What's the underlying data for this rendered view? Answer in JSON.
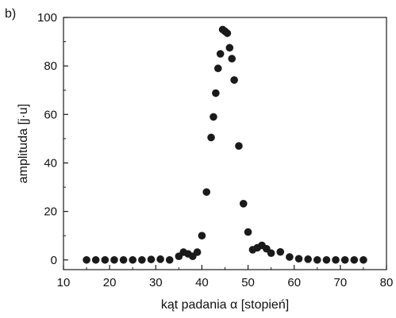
{
  "chart_data": {
    "type": "scatter",
    "panel_label": "b)",
    "title": "",
    "xlabel": "kąt padania α [stopień]",
    "ylabel": "amplituda [j·u]",
    "xlim": [
      10,
      80
    ],
    "ylim": [
      -4,
      100
    ],
    "x_ticks": [
      10,
      20,
      30,
      40,
      50,
      60,
      70,
      80
    ],
    "y_ticks": [
      0,
      20,
      40,
      60,
      80,
      100
    ],
    "grid": false,
    "legend": "none",
    "marker_color": "#1a1a1a",
    "series": [
      {
        "points": [
          [
            15.0,
            0.0
          ],
          [
            17.0,
            0.0
          ],
          [
            19.0,
            0.0
          ],
          [
            21.0,
            0.0
          ],
          [
            23.0,
            0.0
          ],
          [
            25.0,
            0.0
          ],
          [
            27.0,
            0.0
          ],
          [
            29.0,
            0.2
          ],
          [
            31.0,
            0.3
          ],
          [
            33.0,
            0.0
          ],
          [
            35.0,
            1.5
          ],
          [
            36.0,
            3.2
          ],
          [
            37.0,
            2.5
          ],
          [
            38.0,
            1.5
          ],
          [
            39.0,
            3.2
          ],
          [
            40.0,
            10.0
          ],
          [
            41.0,
            28.0
          ],
          [
            42.0,
            50.5
          ],
          [
            42.5,
            59.0
          ],
          [
            43.0,
            68.8
          ],
          [
            43.5,
            79.0
          ],
          [
            44.0,
            85.0
          ],
          [
            44.5,
            95.0
          ],
          [
            45.0,
            94.3
          ],
          [
            45.5,
            93.5
          ],
          [
            46.0,
            87.5
          ],
          [
            46.5,
            83.0
          ],
          [
            47.0,
            74.2
          ],
          [
            48.0,
            47.0
          ],
          [
            49.0,
            23.2
          ],
          [
            50.0,
            11.5
          ],
          [
            51.0,
            4.2
          ],
          [
            52.0,
            5.0
          ],
          [
            53.0,
            6.0
          ],
          [
            54.0,
            4.6
          ],
          [
            55.0,
            2.8
          ],
          [
            57.0,
            3.3
          ],
          [
            59.0,
            1.2
          ],
          [
            61.0,
            0.5
          ],
          [
            63.0,
            0.3
          ],
          [
            65.0,
            0.0
          ],
          [
            67.0,
            0.0
          ],
          [
            69.0,
            0.0
          ],
          [
            71.0,
            0.0
          ],
          [
            73.0,
            0.0
          ],
          [
            75.0,
            0.0
          ]
        ]
      }
    ]
  }
}
